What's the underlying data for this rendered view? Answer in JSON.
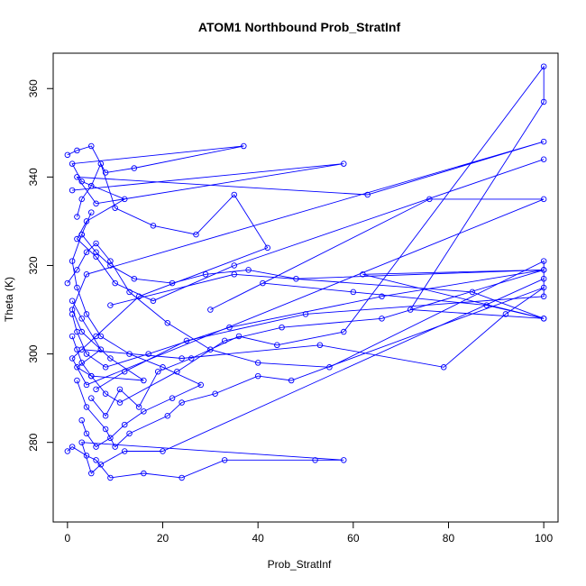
{
  "chart_data": {
    "type": "line",
    "title": "ATOM1 Northbound Prob_StratInf",
    "xlabel": "Prob_StratInf",
    "ylabel": "Theta (K)",
    "xlim": [
      -3,
      103
    ],
    "ylim": [
      262,
      368
    ],
    "xticks": [
      0,
      20,
      40,
      60,
      80,
      100
    ],
    "yticks": [
      280,
      300,
      320,
      340,
      360
    ],
    "grid": false,
    "legend": "none",
    "series_color": "#0000ff",
    "marker": "open-circle",
    "series": [
      {
        "x": [
          0,
          2,
          5,
          8,
          14,
          37,
          1,
          3,
          12,
          4,
          2,
          6,
          10,
          18,
          35,
          100
        ],
        "y": [
          345,
          346,
          347,
          341,
          342,
          347,
          343,
          339,
          335,
          330,
          326,
          322,
          316,
          312,
          320,
          344
        ]
      },
      {
        "x": [
          1,
          3,
          7,
          2,
          5,
          16,
          9,
          3,
          1,
          4,
          100,
          63,
          2,
          6,
          58,
          1
        ],
        "y": [
          312,
          308,
          301,
          297,
          295,
          294,
          299,
          305,
          310,
          318,
          348,
          336,
          340,
          334,
          343,
          337
        ]
      },
      {
        "x": [
          2,
          4,
          8,
          10,
          13,
          21,
          24,
          31,
          40,
          47,
          100,
          92,
          79,
          53,
          24,
          3
        ],
        "y": [
          294,
          288,
          283,
          279,
          282,
          286,
          289,
          291,
          295,
          294,
          315,
          309,
          297,
          302,
          299,
          301
        ]
      },
      {
        "x": [
          0,
          1,
          4,
          6,
          9,
          16,
          24,
          33,
          52,
          58,
          3,
          5,
          7,
          12,
          20,
          100
        ],
        "y": [
          278,
          279,
          277,
          276,
          272,
          273,
          272,
          276,
          276,
          276,
          280,
          273,
          275,
          278,
          278,
          317
        ]
      },
      {
        "x": [
          3,
          6,
          9,
          14,
          22,
          29,
          38,
          48,
          100,
          66,
          34,
          17,
          8,
          4,
          2,
          1
        ],
        "y": [
          327,
          323,
          320,
          317,
          316,
          318,
          319,
          317,
          319,
          313,
          306,
          300,
          297,
          300,
          305,
          309
        ]
      },
      {
        "x": [
          5,
          8,
          11,
          15,
          19,
          26,
          36,
          44,
          58,
          100,
          100,
          72,
          100,
          88,
          60,
          41
        ],
        "y": [
          290,
          286,
          292,
          288,
          296,
          299,
          304,
          302,
          305,
          365,
          357,
          310,
          308,
          311,
          314,
          316
        ]
      },
      {
        "x": [
          2,
          3,
          5,
          7,
          10,
          18,
          27,
          35,
          42,
          15,
          6,
          1,
          4,
          100,
          76,
          30
        ],
        "y": [
          331,
          335,
          338,
          343,
          333,
          329,
          327,
          336,
          324,
          313,
          304,
          299,
          293,
          335,
          335,
          310
        ]
      },
      {
        "x": [
          0,
          2,
          4,
          6,
          9,
          13,
          21,
          30,
          40,
          55,
          100,
          100,
          50,
          25,
          12,
          6
        ],
        "y": [
          316,
          319,
          323,
          325,
          321,
          314,
          307,
          301,
          298,
          297,
          321,
          313,
          309,
          303,
          296,
          292
        ]
      },
      {
        "x": [
          1,
          2,
          3,
          5,
          8,
          11,
          23,
          33,
          45,
          66,
          100,
          62,
          100,
          85,
          35,
          9
        ],
        "y": [
          304,
          301,
          298,
          295,
          291,
          289,
          296,
          303,
          306,
          308,
          319,
          318,
          308,
          314,
          318,
          311
        ]
      },
      {
        "x": [
          3,
          4,
          6,
          9,
          12,
          16,
          22,
          28,
          20,
          13,
          7,
          4,
          2,
          1,
          3,
          5
        ],
        "y": [
          285,
          282,
          279,
          281,
          284,
          287,
          290,
          293,
          297,
          300,
          304,
          309,
          315,
          321,
          327,
          332
        ]
      }
    ]
  }
}
